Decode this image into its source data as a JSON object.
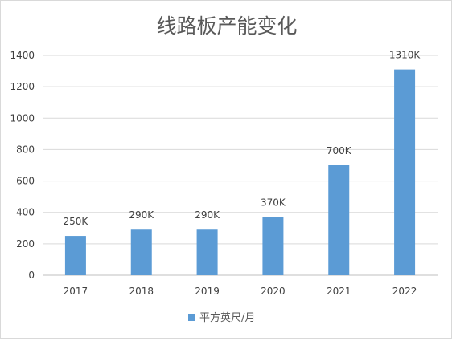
{
  "chart_data": {
    "type": "bar",
    "title": "线路板产能变化",
    "categories": [
      "2017",
      "2018",
      "2019",
      "2020",
      "2021",
      "2022"
    ],
    "series": [
      {
        "name": "平方英尺/月",
        "values": [
          250,
          290,
          290,
          370,
          700,
          1310
        ],
        "data_labels": [
          "250K",
          "290K",
          "290K",
          "370K",
          "700K",
          "1310K"
        ],
        "color": "#5b9bd5"
      }
    ],
    "y_ticks": [
      "0",
      "200",
      "400",
      "600",
      "800",
      "1000",
      "1200",
      "1400"
    ],
    "ylim": [
      0,
      1400
    ],
    "grid": true,
    "legend": "bottom"
  }
}
